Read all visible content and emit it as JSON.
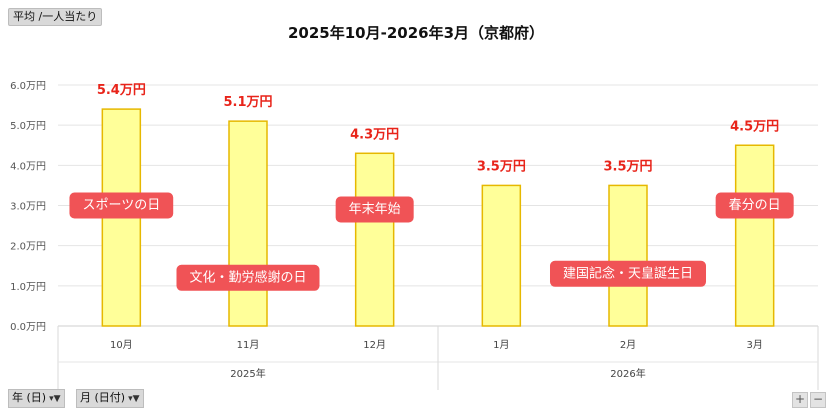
{
  "header": {
    "field_button": "平均 /一人当たり"
  },
  "chart_data": {
    "type": "bar",
    "title": "2025年10月-2026年3月（京都府）",
    "categories": [
      "10月",
      "11月",
      "12月",
      "1月",
      "2月",
      "3月"
    ],
    "groups": [
      {
        "label": "2025年",
        "count": 3
      },
      {
        "label": "2026年",
        "count": 3
      }
    ],
    "values": [
      5.4,
      5.1,
      4.3,
      3.5,
      3.5,
      4.5
    ],
    "value_labels": [
      "5.4万円",
      "5.1万円",
      "4.3万円",
      "3.5万円",
      "3.5万円",
      "4.5万円"
    ],
    "y_ticks": [
      "0.0万円",
      "1.0万円",
      "2.0万円",
      "3.0万円",
      "4.0万円",
      "5.0万円",
      "6.0万円"
    ],
    "ylim": [
      0,
      6
    ],
    "grid": true,
    "colors": {
      "bar_fill": "#ffff99",
      "bar_stroke": "#e6b800",
      "value_label": "#e8241a",
      "annotation": "#f05356"
    },
    "annotations": [
      {
        "text": "スポーツの日",
        "category": "10月"
      },
      {
        "text": "文化・勤労感謝の日",
        "category": "11月"
      },
      {
        "text": "年末年始",
        "category": "12月"
      },
      {
        "text": "建国記念・天皇誕生日",
        "category": "2月"
      },
      {
        "text": "春分の日",
        "category": "3月"
      }
    ]
  },
  "footer": {
    "filter_year": "年 (日)",
    "filter_month": "月 (日付)",
    "zoom_in": "+",
    "zoom_out": "−"
  }
}
